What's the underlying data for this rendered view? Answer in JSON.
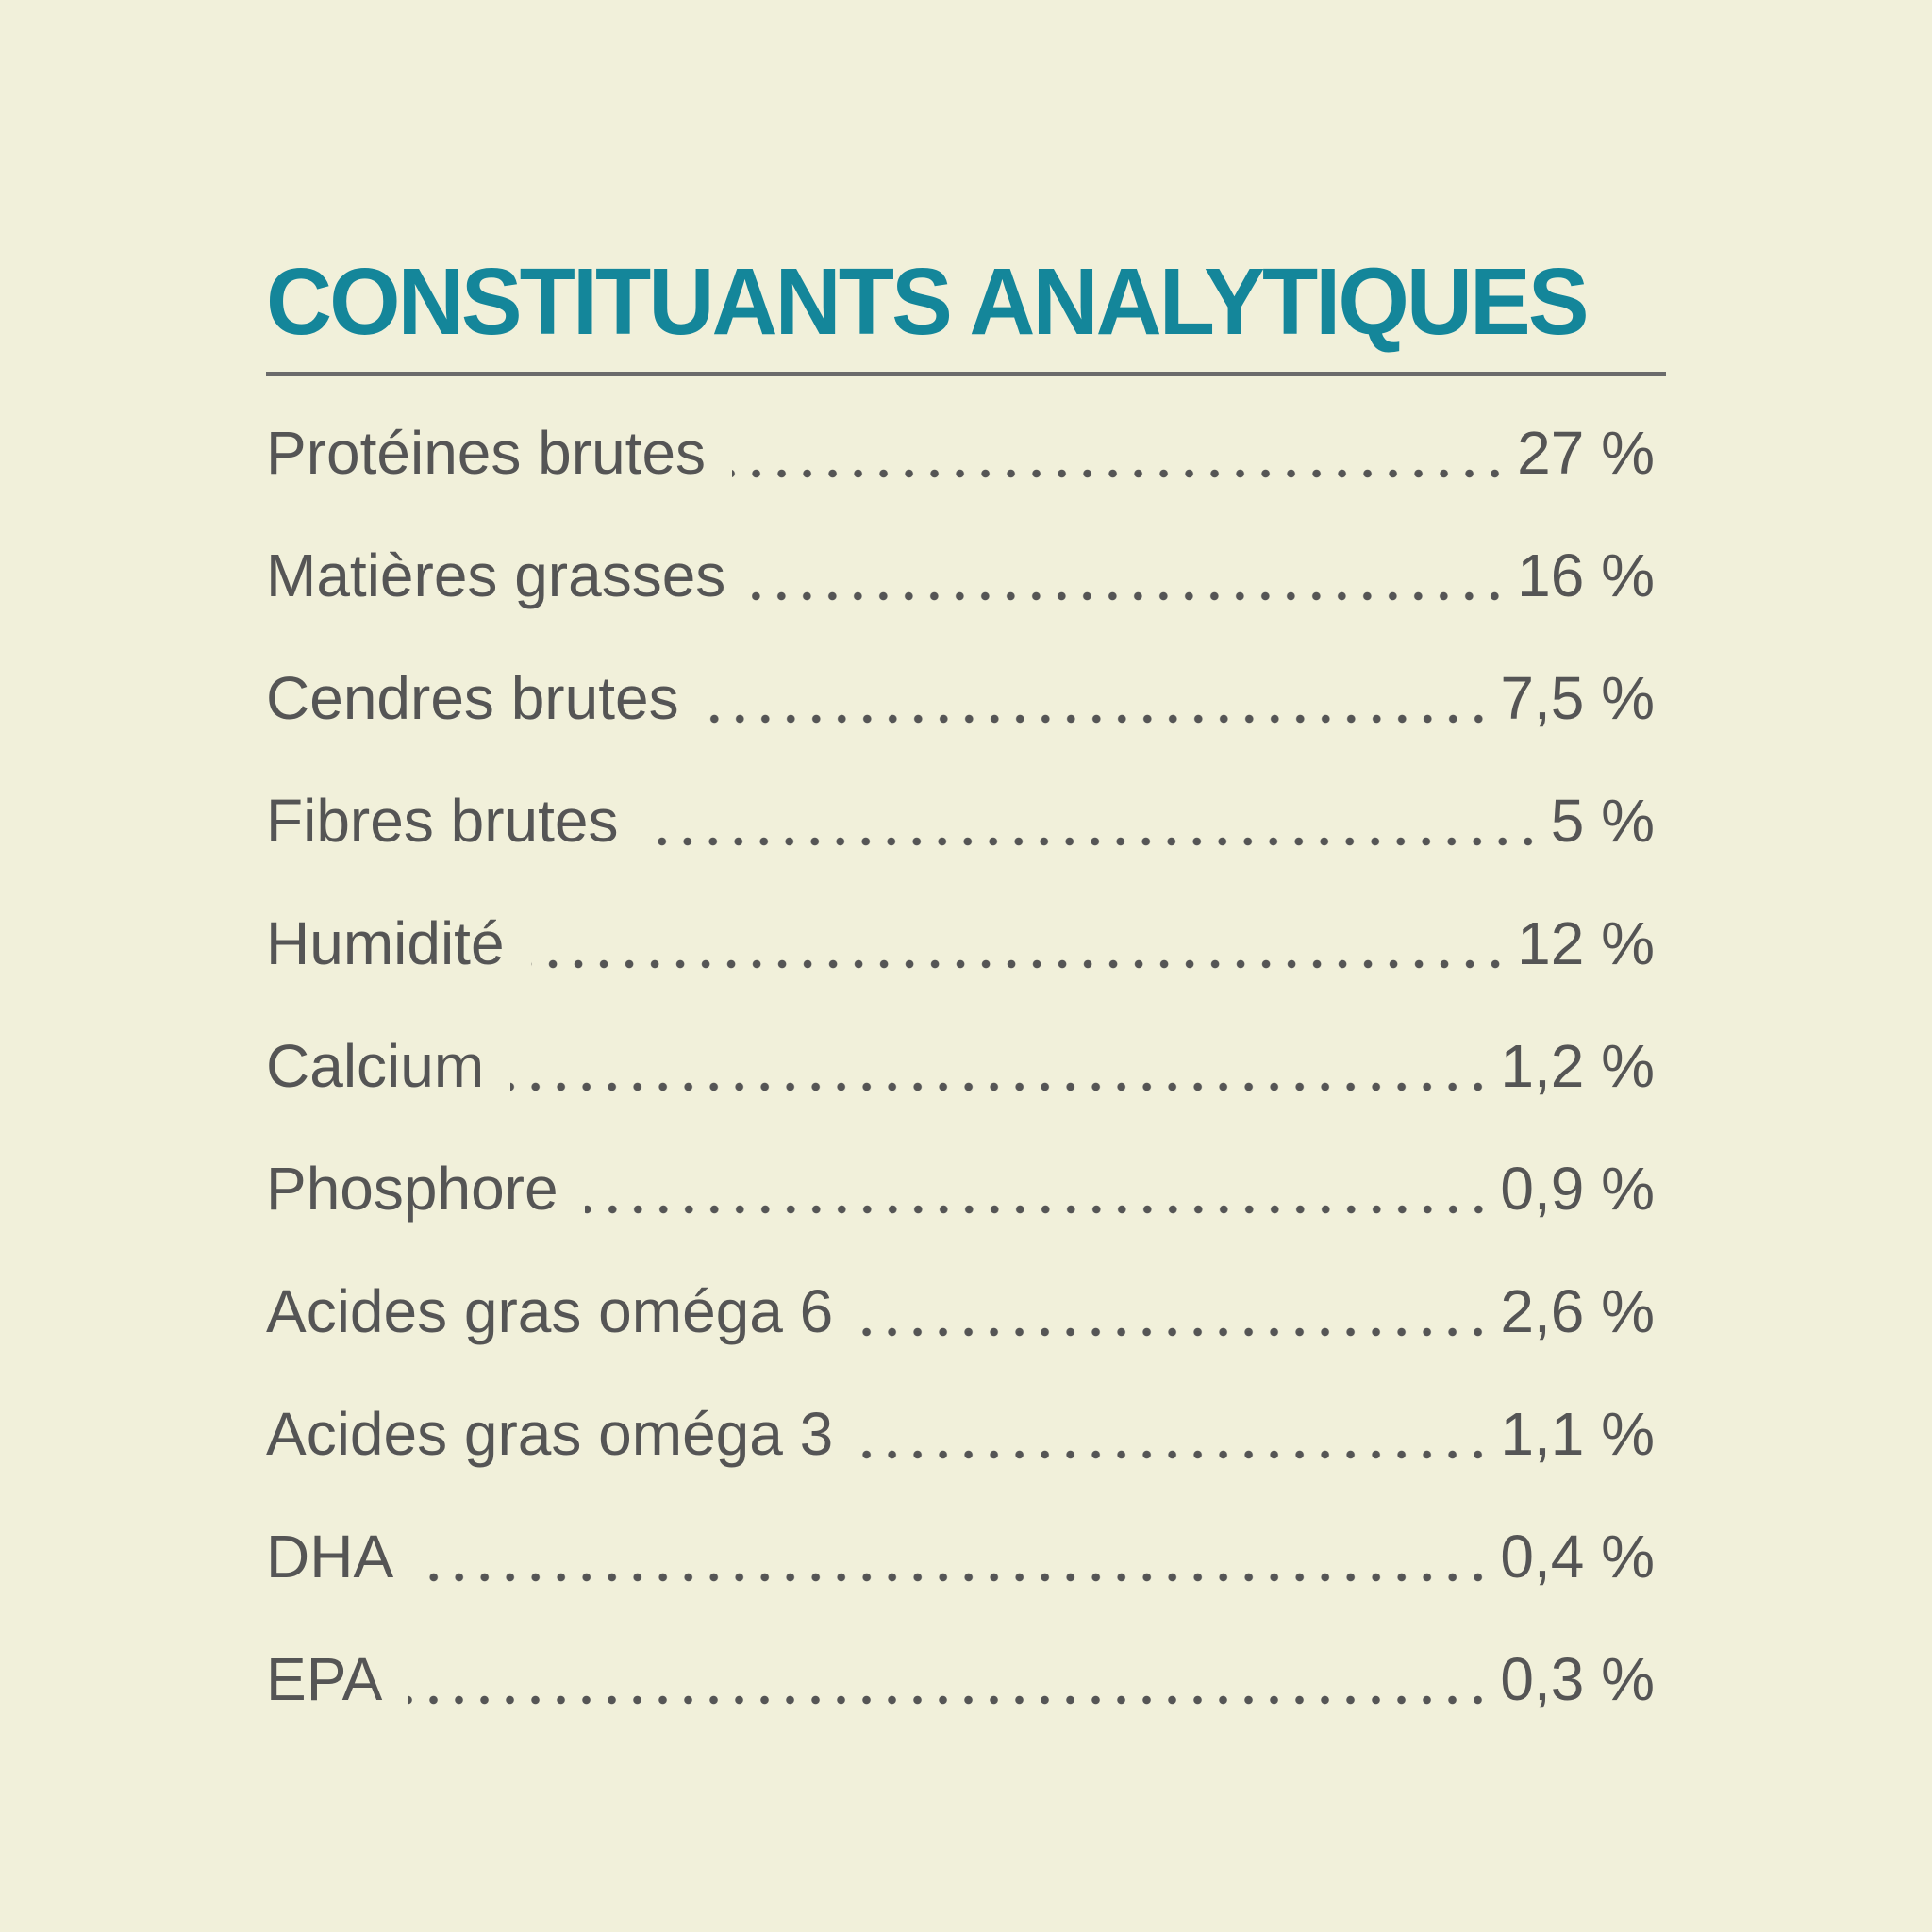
{
  "header": {
    "title": "CONSTITUANTS ANALYTIQUES"
  },
  "table": {
    "rows": [
      {
        "label": "Protéines brutes",
        "value": "27 %"
      },
      {
        "label": "Matières grasses",
        "value": "16 %"
      },
      {
        "label": "Cendres brutes",
        "value": "7,5 %"
      },
      {
        "label": "Fibres brutes",
        "value": "5 %"
      },
      {
        "label": "Humidité",
        "value": "12 %"
      },
      {
        "label": "Calcium",
        "value": "1,2 %"
      },
      {
        "label": "Phosphore",
        "value": "0,9 %"
      },
      {
        "label": "Acides gras oméga 6",
        "value": "2,6 %"
      },
      {
        "label": "Acides gras oméga 3",
        "value": "1,1 %"
      },
      {
        "label": "DHA",
        "value": "0,4 %"
      },
      {
        "label": "EPA",
        "value": "0,3 %"
      }
    ]
  }
}
